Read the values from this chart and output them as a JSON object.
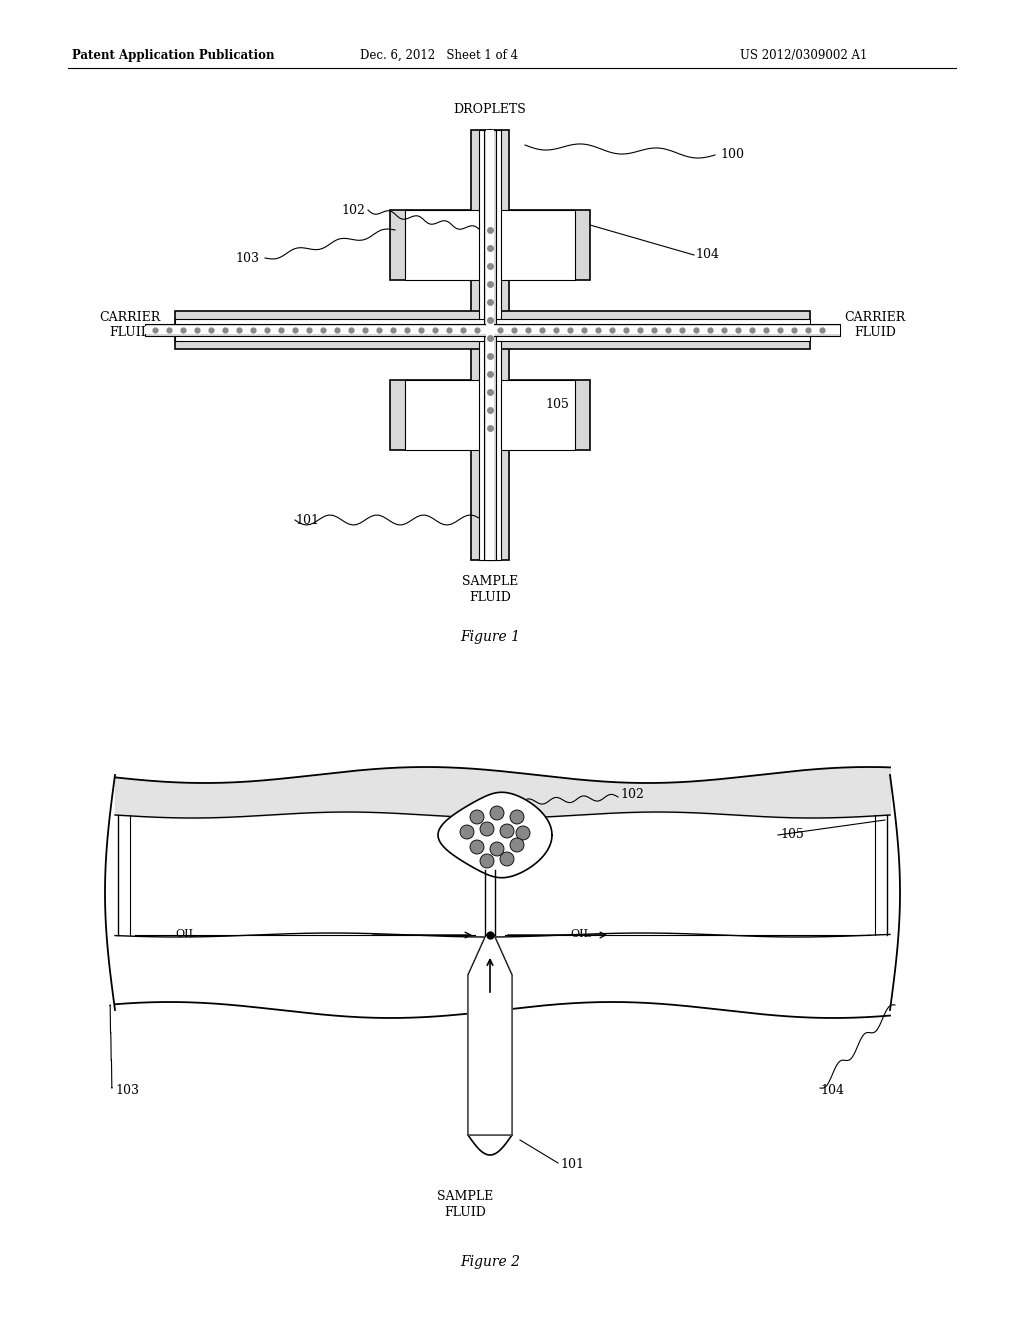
{
  "header_left": "Patent Application Publication",
  "header_mid": "Dec. 6, 2012   Sheet 1 of 4",
  "header_right": "US 2012/0309002 A1",
  "fig1_caption": "Figure 1",
  "fig2_caption": "Figure 2",
  "bg_color": "#ffffff",
  "line_color": "#000000",
  "gray_fill": "#d8d8d8",
  "dot_color": "#888888",
  "lw_main": 1.2,
  "lw_thin": 0.8
}
